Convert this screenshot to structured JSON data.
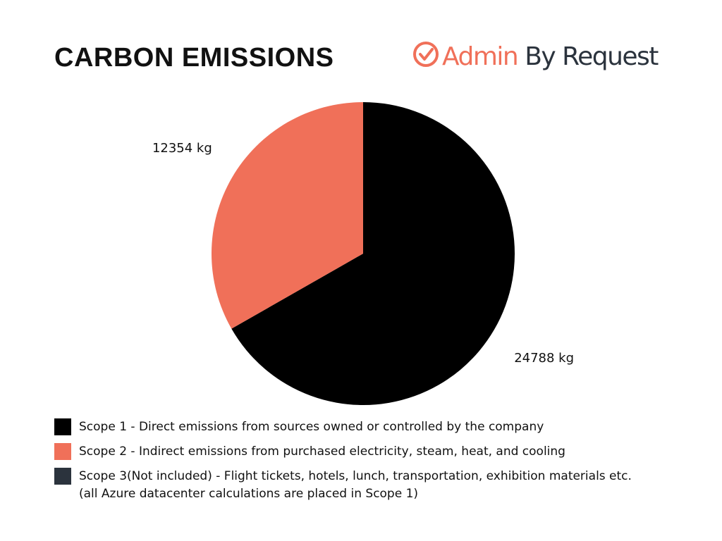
{
  "brand": [
    "Admin",
    "By Request"
  ],
  "chart_data": {
    "type": "pie",
    "title": "CARBON EMISSIONS",
    "categories": [
      "Scope 1 - Direct emissions from sources owned or controlled by the company",
      "Scope 2 - Indirect emissions from purchased electricity, steam, heat, and cooling",
      "Scope 3(Not included) - Flight tickets, hotels, lunch, transportation, exhibition materials etc. (all Azure datacenter calculations are placed in Scope 1)"
    ],
    "values": [
      24788,
      12354,
      null
    ],
    "value_labels": [
      "24788 kg",
      "12354 kg",
      null
    ],
    "colors": [
      "#000000",
      "#f07059",
      "#2b333d"
    ],
    "legend": "bottom-left"
  }
}
